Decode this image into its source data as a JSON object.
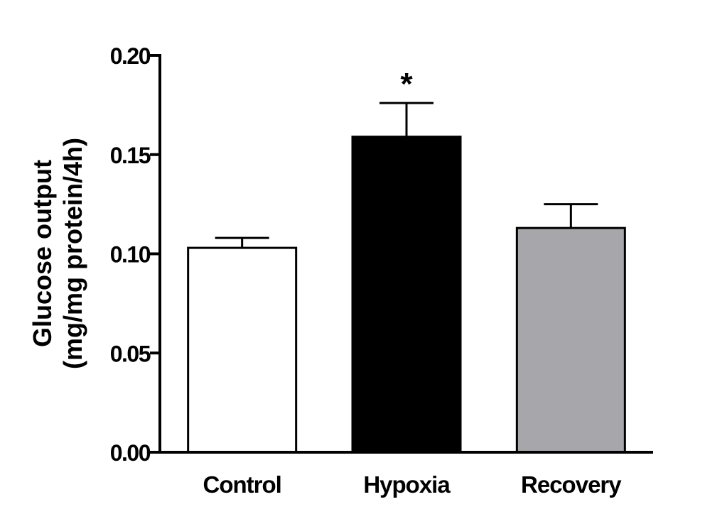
{
  "chart_data": {
    "type": "bar",
    "categories": [
      "Control",
      "Hypoxia",
      "Recovery"
    ],
    "values": [
      0.103,
      0.159,
      0.113
    ],
    "errors": [
      0.005,
      0.017,
      0.012
    ],
    "bar_colors": [
      "#ffffff",
      "#000000",
      "#a7a6ab"
    ],
    "annotations": [
      "",
      "*",
      ""
    ],
    "ylabel_line1": "Glucose output",
    "ylabel_line2": "(mg/mg protein/4h)",
    "ylim": [
      0,
      0.2
    ],
    "yticks": [
      0,
      0.05,
      0.1,
      0.15,
      0.2
    ],
    "ytick_labels": [
      "0.00",
      "0.05",
      "0.10",
      "0.15",
      "0.20"
    ],
    "grid": false,
    "legend": "none"
  }
}
